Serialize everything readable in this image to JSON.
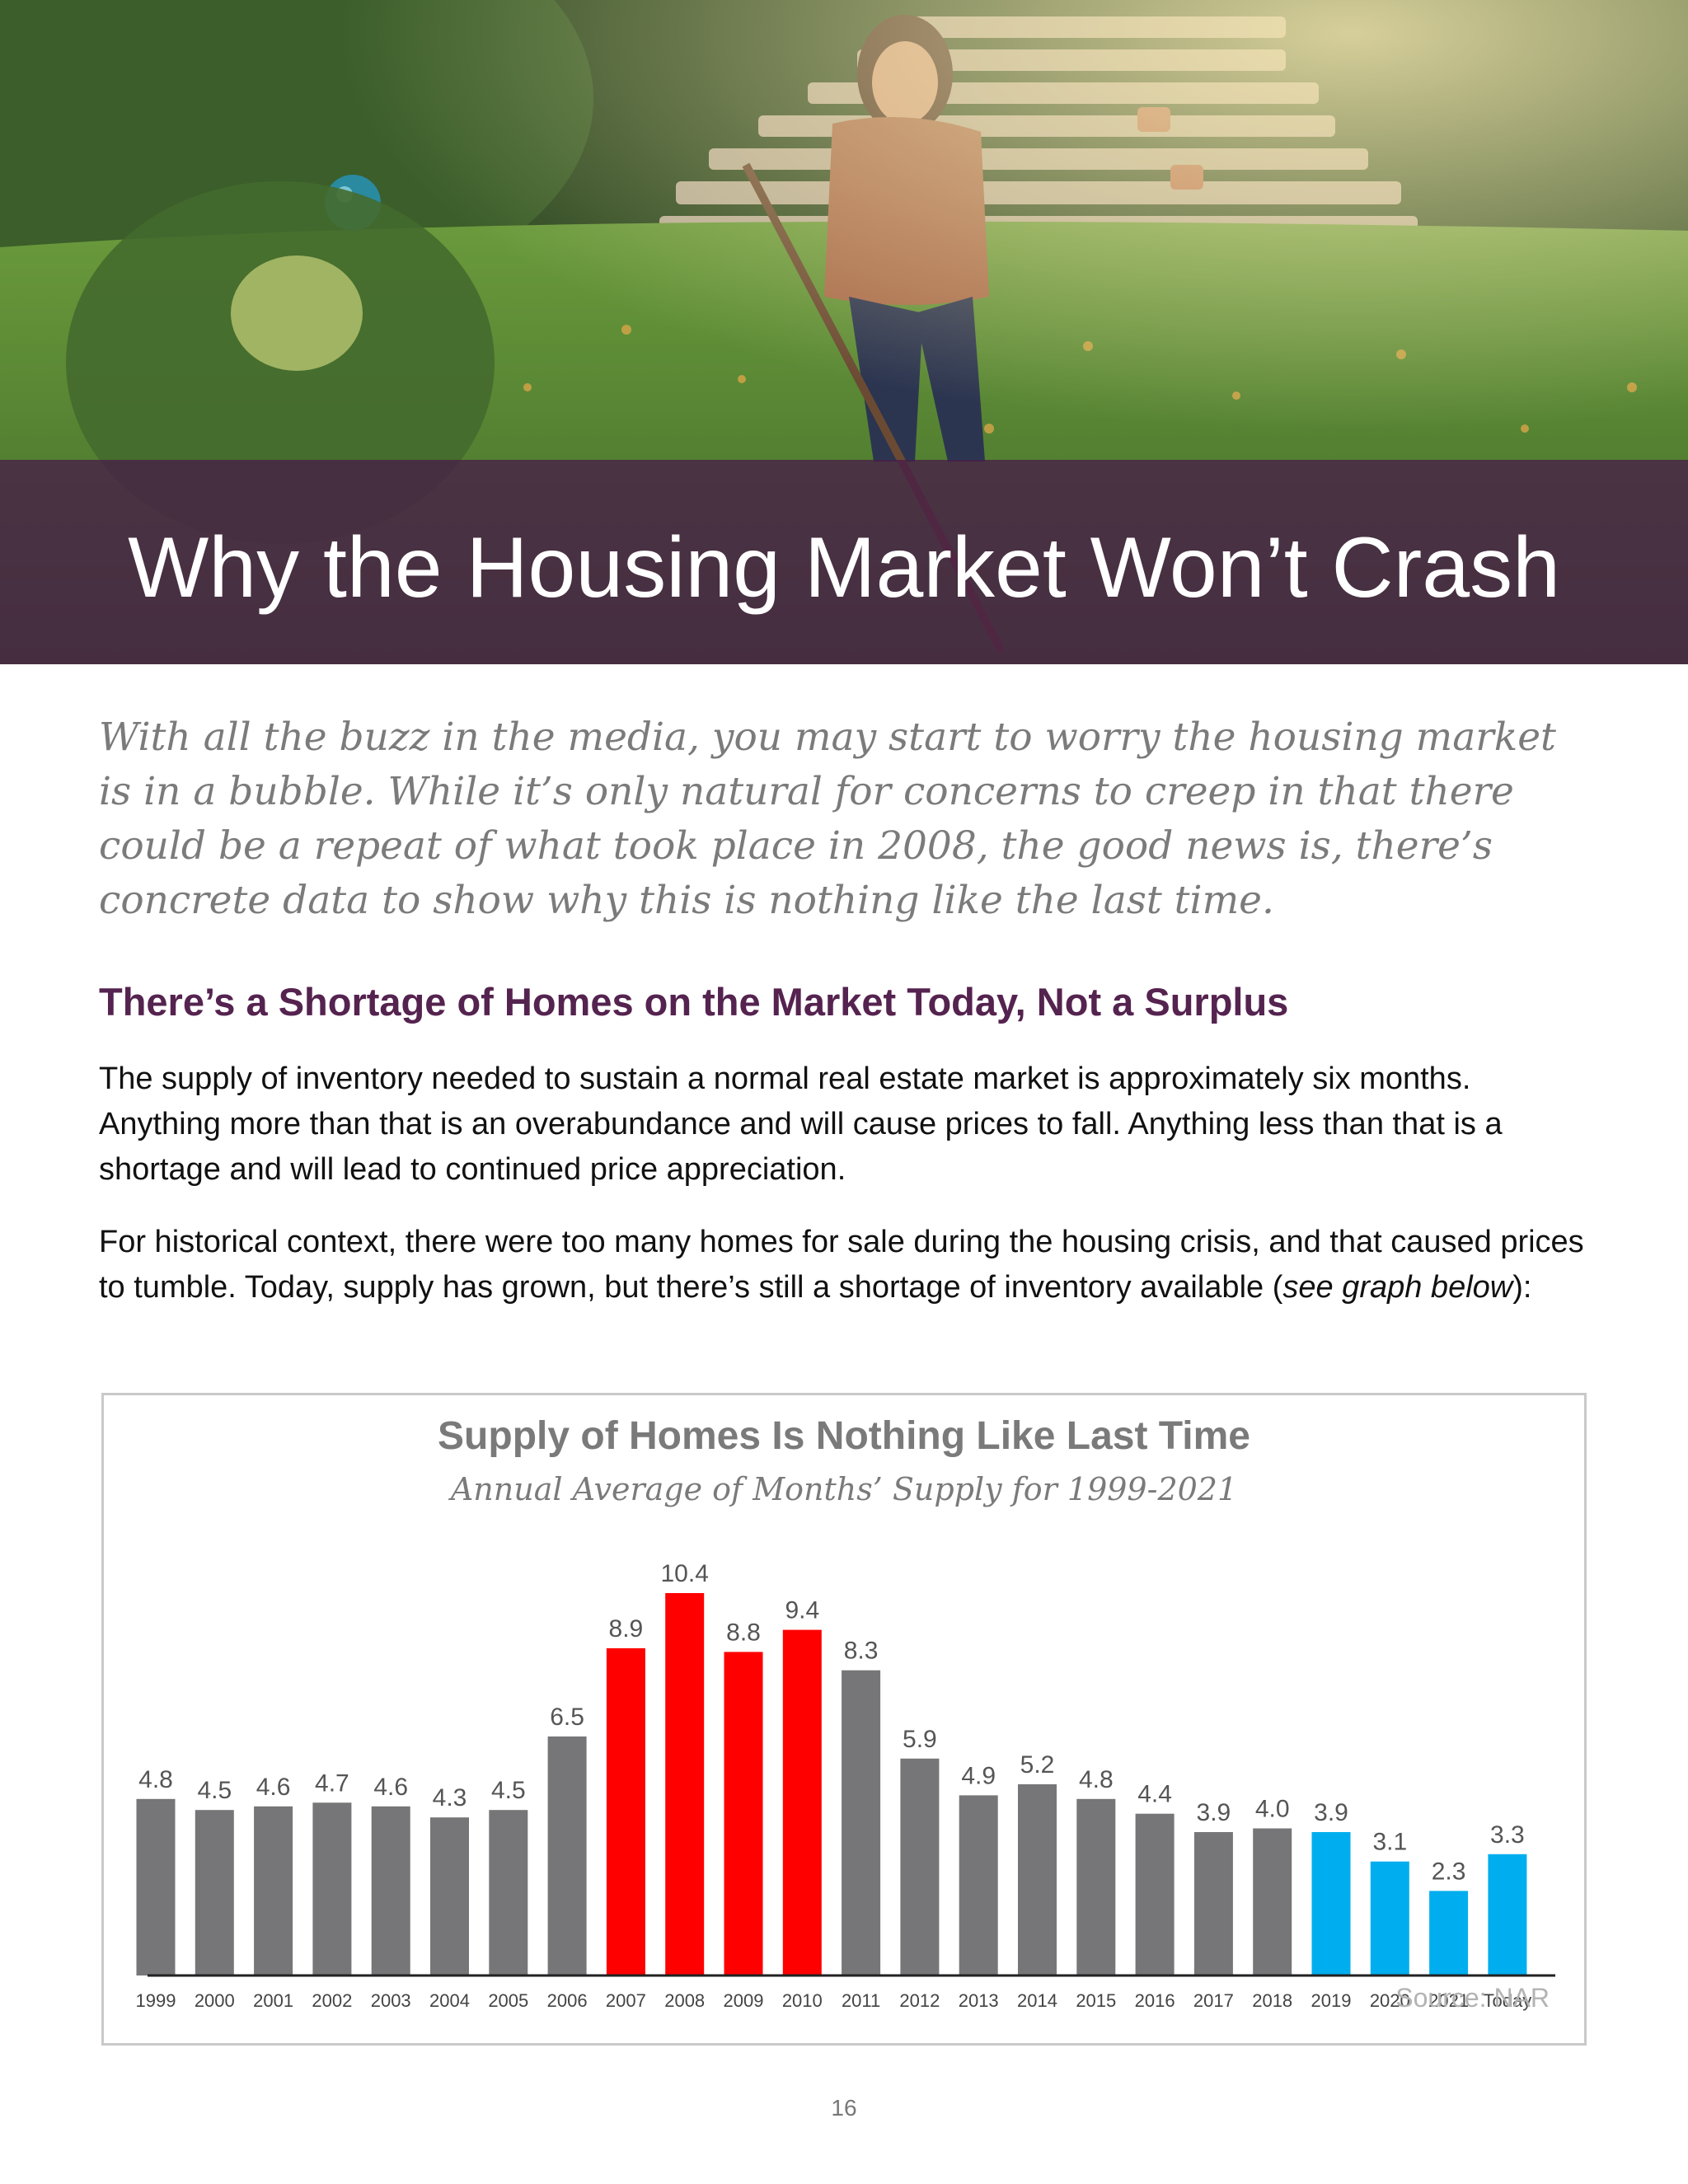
{
  "hero": {
    "title": "Why the Housing Market Won’t Crash"
  },
  "intro": "With all the buzz in the media, you may start to worry the housing market is in a bubble. While it’s only natural for concerns to creep in that there could be a repeat of what took place in 2008, the good news is, there’s concrete data to show why this is nothing like the last time.",
  "section": {
    "heading": "There’s a Shortage of Homes on the Market Today, Not a Surplus",
    "paragraph1": "The supply of inventory needed to sustain a normal real estate market is approximately six months. Anything more than that is an overabundance and will cause prices to fall. Anything less than that is a shortage and will lead to continued price appreciation.",
    "paragraph2_before": "For historical context, there were too many homes for sale during the housing crisis, and that caused prices to tumble. Today, supply has grown, but there’s still a shortage of inventory available (",
    "paragraph2_italic": "see graph below",
    "paragraph2_after": "):"
  },
  "chart_data": {
    "type": "bar",
    "title": "Supply of Homes Is Nothing Like Last Time",
    "subtitle": "Annual Average of Months’ Supply for 1999-2021",
    "source": "Source: NAR",
    "categories": [
      "1999",
      "2000",
      "2001",
      "2002",
      "2003",
      "2004",
      "2005",
      "2006",
      "2007",
      "2008",
      "2009",
      "2010",
      "2011",
      "2012",
      "2013",
      "2014",
      "2015",
      "2016",
      "2017",
      "2018",
      "2019",
      "2020",
      "2021",
      "Today"
    ],
    "values": [
      4.8,
      4.5,
      4.6,
      4.7,
      4.6,
      4.3,
      4.5,
      6.5,
      8.9,
      10.4,
      8.8,
      9.4,
      8.3,
      5.9,
      4.9,
      5.2,
      4.8,
      4.4,
      3.9,
      4.0,
      3.9,
      3.1,
      2.3,
      3.3
    ],
    "labels": [
      "4.8",
      "4.5",
      "4.6",
      "4.7",
      "4.6",
      "4.3",
      "4.5",
      "6.5",
      "8.9",
      "10.4",
      "8.8",
      "9.4",
      "8.3",
      "5.9",
      "4.9",
      "5.2",
      "4.8",
      "4.4",
      "3.9",
      "4.0",
      "3.9",
      "3.1",
      "2.3",
      "3.3"
    ],
    "bar_colors": [
      "#767577",
      "#767577",
      "#767577",
      "#767577",
      "#767577",
      "#767577",
      "#767577",
      "#767577",
      "#ff0000",
      "#ff0000",
      "#ff0000",
      "#ff0000",
      "#767577",
      "#767577",
      "#767577",
      "#767577",
      "#767577",
      "#767577",
      "#767577",
      "#767577",
      "#00aeef",
      "#00aeef",
      "#00aeef",
      "#00aeef"
    ],
    "ylim": [
      0,
      10.4
    ],
    "grid": false,
    "legend": "none"
  },
  "footer": {
    "page_number": "16"
  }
}
